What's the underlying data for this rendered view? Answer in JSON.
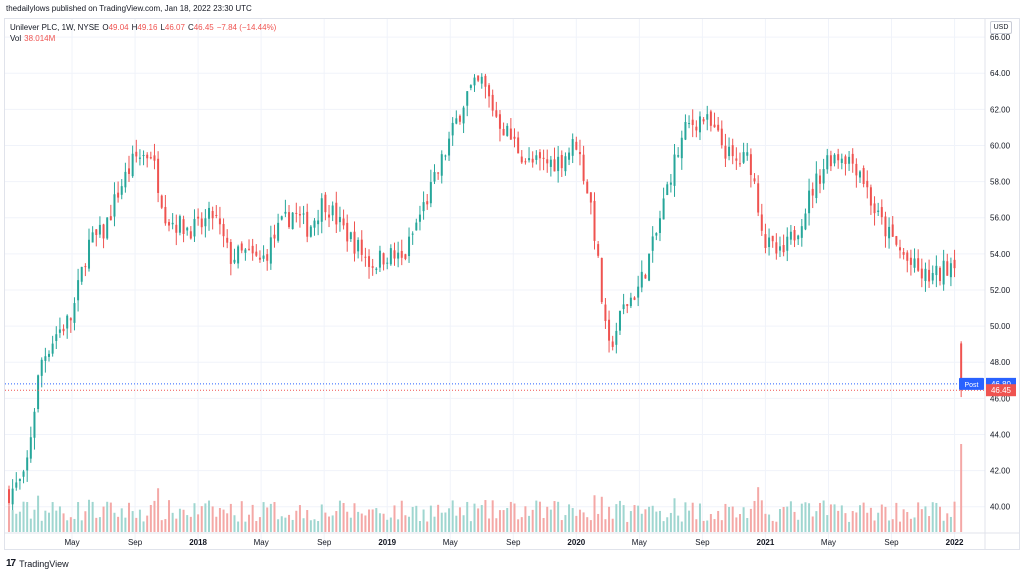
{
  "header": {
    "published": "thedailylows published on TradingView.com, Jan 18, 2022 23:30 UTC"
  },
  "legend": {
    "symbol": "Unilever PLC, 1W, NYSE",
    "o_label": "O",
    "o_value": "49.04",
    "h_label": "H",
    "h_value": "49.16",
    "l_label": "L",
    "l_value": "46.07",
    "c_label": "C",
    "c_value": "46.45",
    "change": "−7.84 (−14.44%)",
    "vol_label": "Vol",
    "vol_value": "38.014M"
  },
  "currency_badge": "USD",
  "footer": {
    "logo_mark": "17",
    "logo_text": "TradingView"
  },
  "colors": {
    "up": "#26a69a",
    "down": "#ef5350",
    "vol_up": "#9fd6d0",
    "vol_down": "#f4a8a6",
    "post": "#2962ff",
    "grid": "#f0f3fa"
  },
  "chart_data": {
    "type": "candlestick",
    "title": "Unilever PLC, 1W, NYSE",
    "ylim": [
      38.6,
      67
    ],
    "y_ticks": [
      40,
      42,
      44,
      46,
      48,
      50,
      52,
      54,
      56,
      58,
      60,
      62,
      64,
      66
    ],
    "y_tick_labels": [
      "40.00",
      "42.00",
      "44.00",
      "46.00",
      "48.00",
      "50.00",
      "52.00",
      "54.00",
      "56.00",
      "58.00",
      "60.00",
      "62.00",
      "64.00",
      "66.00"
    ],
    "x_start": "2017-01",
    "x_end": "2022-01",
    "x_ticks": [
      "2017-05",
      "2017-09",
      "2018-01",
      "2018-05",
      "2018-09",
      "2019-01",
      "2019-05",
      "2019-09",
      "2020-01",
      "2020-05",
      "2020-09",
      "2021-01",
      "2021-05",
      "2021-09",
      "2022-01"
    ],
    "x_tick_labels": [
      "May",
      "Sep",
      "2018",
      "May",
      "Sep",
      "2019",
      "May",
      "Sep",
      "2020",
      "May",
      "Sep",
      "2021",
      "May",
      "Sep",
      "2022"
    ],
    "grid": true,
    "price_path": [
      [
        "2017-01",
        40.8
      ],
      [
        "2017-02",
        41.5
      ],
      [
        "2017-03",
        48.0
      ],
      [
        "2017-04",
        49.6
      ],
      [
        "2017-05",
        50.5
      ],
      [
        "2017-06",
        54.5
      ],
      [
        "2017-07",
        55.2
      ],
      [
        "2017-08",
        57.6
      ],
      [
        "2017-09",
        59.3
      ],
      [
        "2017-10",
        59.6
      ],
      [
        "2017-11",
        56.0
      ],
      [
        "2017-12",
        55.5
      ],
      [
        "2018-01",
        55.4
      ],
      [
        "2018-02",
        56.2
      ],
      [
        "2018-03",
        53.8
      ],
      [
        "2018-04",
        54.0
      ],
      [
        "2018-05",
        53.5
      ],
      [
        "2018-06",
        55.2
      ],
      [
        "2018-07",
        56.3
      ],
      [
        "2018-08",
        55.4
      ],
      [
        "2018-09",
        57.0
      ],
      [
        "2018-10",
        55.6
      ],
      [
        "2018-11",
        54.5
      ],
      [
        "2018-12",
        53.4
      ],
      [
        "2019-01",
        54.0
      ],
      [
        "2019-02",
        53.6
      ],
      [
        "2019-03",
        56.0
      ],
      [
        "2019-04",
        58.0
      ],
      [
        "2019-05",
        60.4
      ],
      [
        "2019-06",
        62.8
      ],
      [
        "2019-07",
        63.5
      ],
      [
        "2019-08",
        61.5
      ],
      [
        "2019-09",
        60.2
      ],
      [
        "2019-10",
        59.0
      ],
      [
        "2019-11",
        59.0
      ],
      [
        "2019-12",
        59.2
      ],
      [
        "2020-01",
        60.2
      ],
      [
        "2020-02",
        56.4
      ],
      [
        "2020-03",
        48.5
      ],
      [
        "2020-04",
        51.0
      ],
      [
        "2020-05",
        52.2
      ],
      [
        "2020-06",
        54.8
      ],
      [
        "2020-07",
        58.5
      ],
      [
        "2020-08",
        61.0
      ],
      [
        "2020-09",
        61.6
      ],
      [
        "2020-10",
        60.4
      ],
      [
        "2020-11",
        59.0
      ],
      [
        "2020-12",
        59.3
      ],
      [
        "2021-01",
        54.6
      ],
      [
        "2021-02",
        53.8
      ],
      [
        "2021-03",
        55.4
      ],
      [
        "2021-04",
        57.6
      ],
      [
        "2021-05",
        59.4
      ],
      [
        "2021-06",
        59.5
      ],
      [
        "2021-07",
        58.7
      ],
      [
        "2021-08",
        56.2
      ],
      [
        "2021-09",
        54.8
      ],
      [
        "2021-10",
        53.6
      ],
      [
        "2021-11",
        52.7
      ],
      [
        "2021-12",
        52.8
      ],
      [
        "2022-01",
        53.8
      ]
    ],
    "last_candle": {
      "x": "2022-01-14",
      "open": 49.04,
      "high": 49.16,
      "low": 46.07,
      "close": 46.45
    },
    "labels": {
      "post": {
        "text": "Post",
        "value": "46.80"
      },
      "last": {
        "value": "46.45"
      }
    },
    "volume_series": "weekly volume bars (green up / red down); last bar 38.014M"
  }
}
